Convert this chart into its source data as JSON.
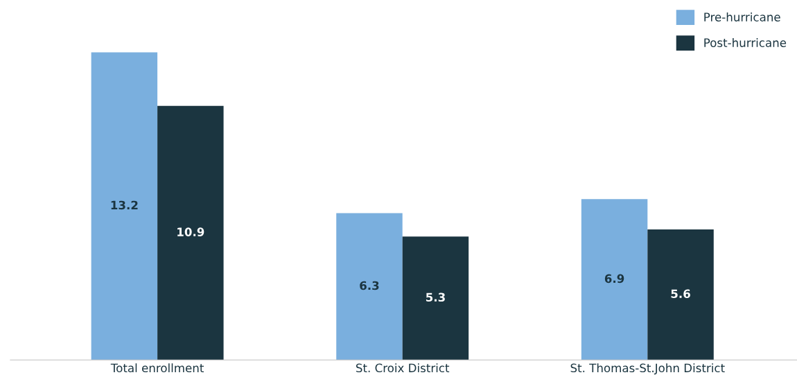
{
  "chart_data": {
    "type": "bar",
    "categories": [
      "Total enrollment",
      "St. Croix District",
      "St. Thomas-St.John District"
    ],
    "series": [
      {
        "name": "Pre-hurricane",
        "color": "#7aafde",
        "values": [
          13.2,
          6.3,
          6.9
        ]
      },
      {
        "name": "Post-hurricane",
        "color": "#1b3540",
        "values": [
          10.9,
          5.3,
          5.6
        ]
      }
    ],
    "data_labels": true,
    "legend": "top right",
    "grid": false,
    "tick_labels": "x"
  }
}
